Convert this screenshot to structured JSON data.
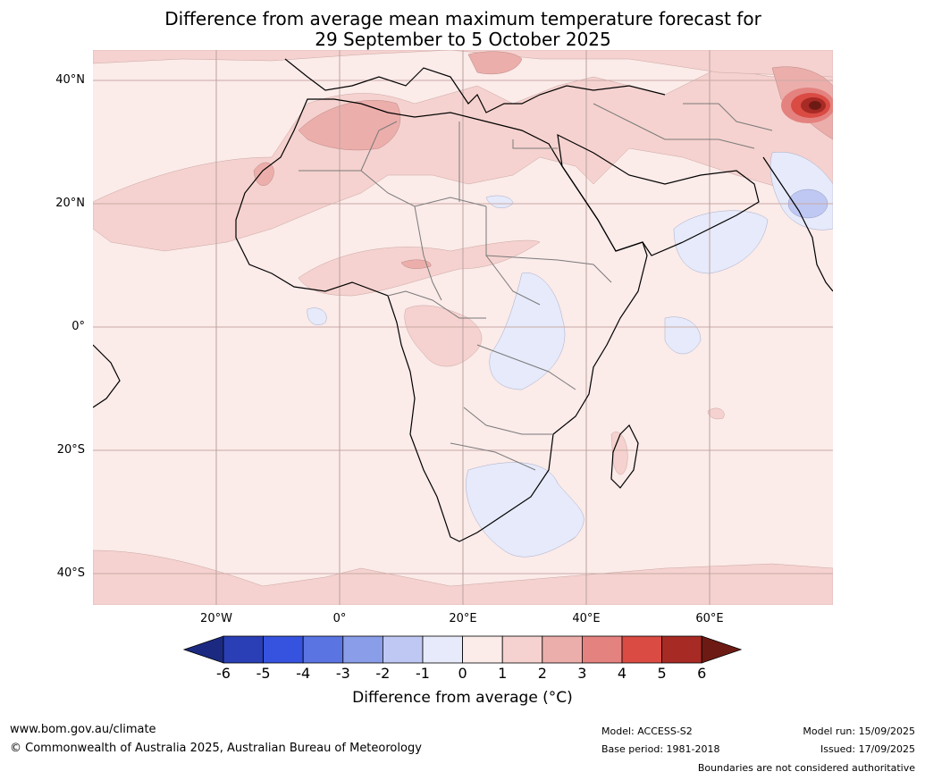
{
  "title": {
    "line1": "Difference from average mean maximum temperature forecast for",
    "line2": "29 September to 5 October 2025"
  },
  "lat_labels": [
    "40°N",
    "20°N",
    "0°",
    "20°S",
    "40°S"
  ],
  "lon_labels": [
    "20°W",
    "0°",
    "20°E",
    "40°E",
    "60°E"
  ],
  "colorbar": {
    "ticks": [
      "-6",
      "-5",
      "-4",
      "-3",
      "-2",
      "-1",
      "0",
      "1",
      "2",
      "3",
      "4",
      "5",
      "6"
    ],
    "colors": [
      "#1b2a80",
      "#2a3fb5",
      "#3553de",
      "#5a74e2",
      "#8a9de8",
      "#bfc8f2",
      "#e6eafa",
      "#fbebe9",
      "#f5d2cf",
      "#ecaeab",
      "#e4827f",
      "#d94b43",
      "#a82a25",
      "#6e1a14"
    ],
    "label": "Difference from average (°C)"
  },
  "footer": {
    "website": "www.bom.gov.au/climate",
    "copyright": "© Commonwealth of Australia 2025, Australian Bureau of Meteorology",
    "model": "Model: ACCESS-S2",
    "base_period": "Base period: 1981-2018",
    "model_run": "Model run: 15/09/2025",
    "issued": "Issued: 17/09/2025",
    "disclaimer": "Boundaries are not considered authoritative"
  }
}
